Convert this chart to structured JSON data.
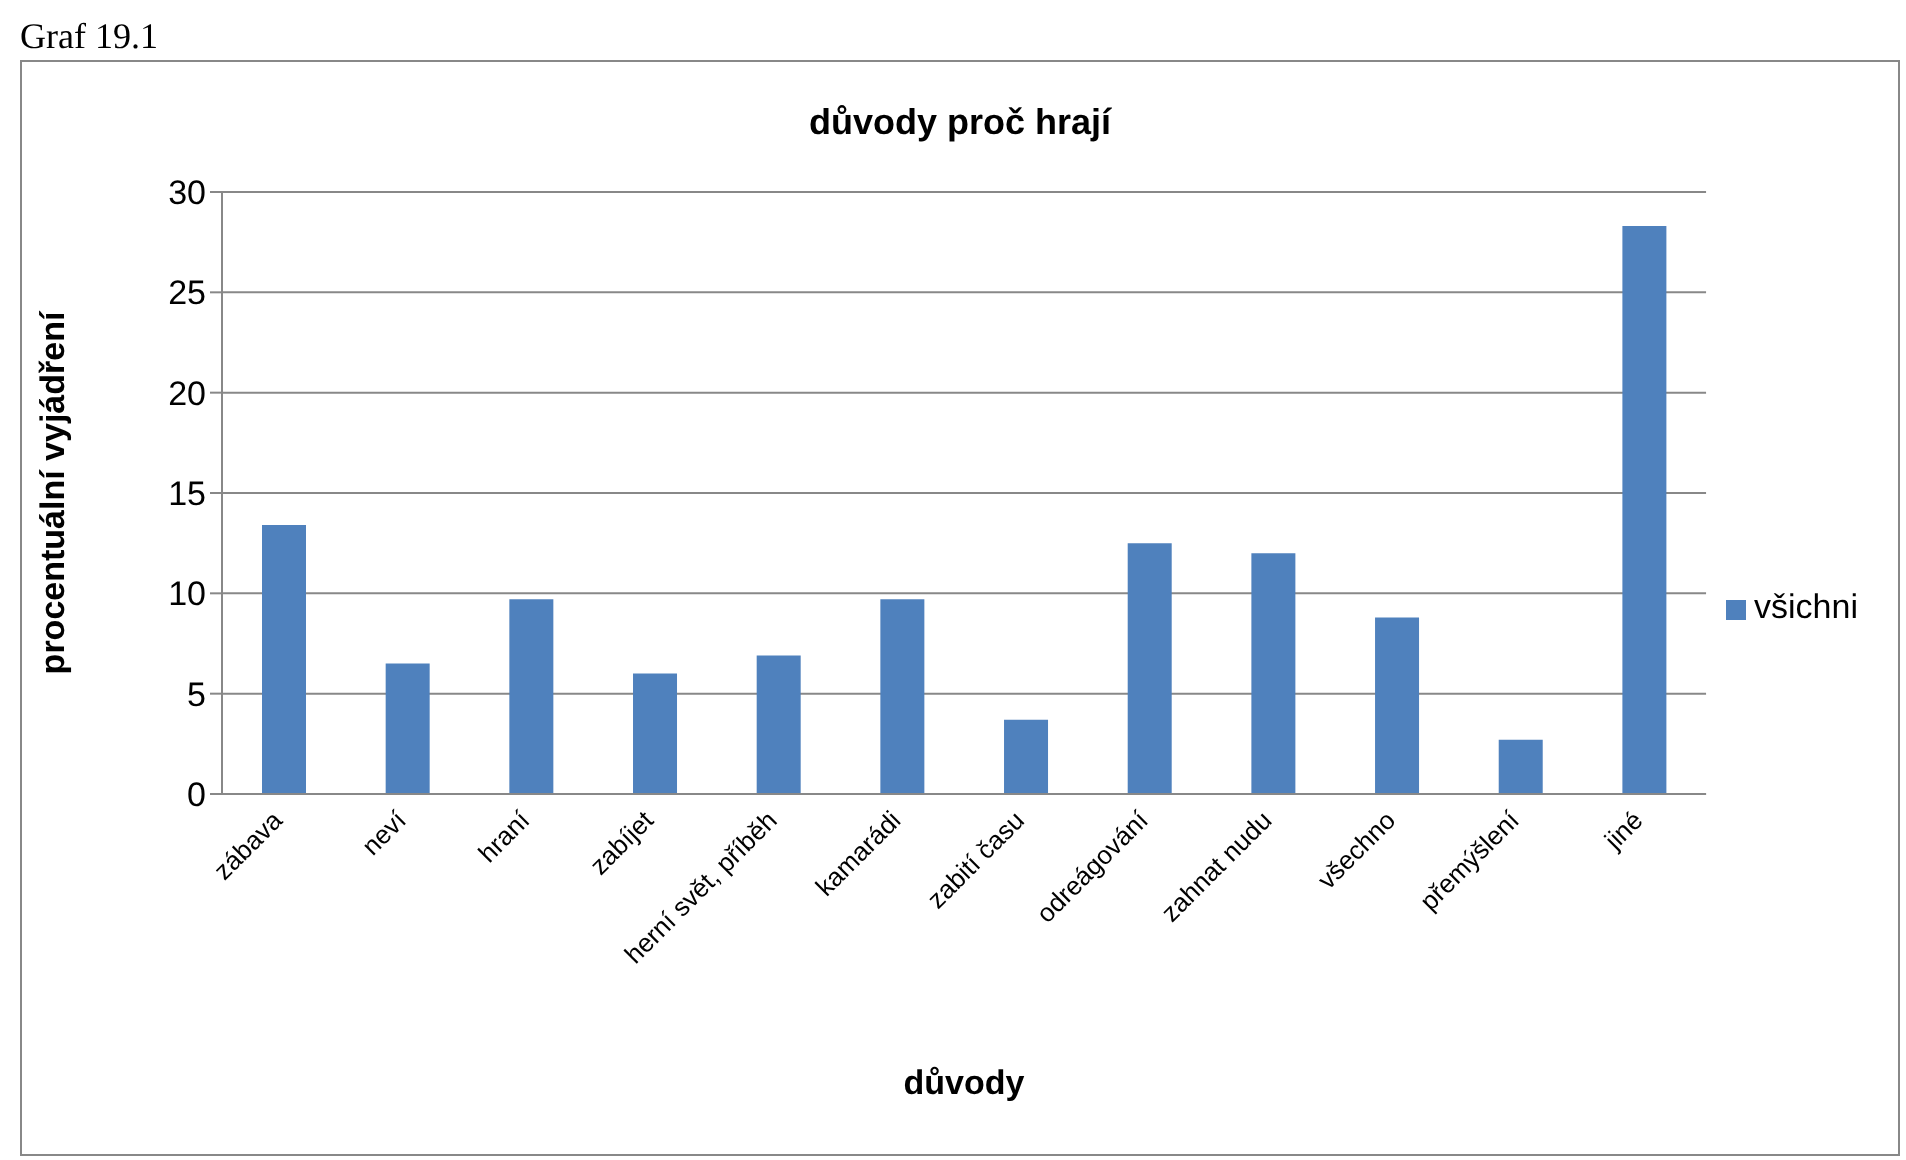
{
  "chart_data": {
    "type": "bar",
    "title": "důvody proč hrají",
    "xlabel": "důvody",
    "ylabel": "procentuální vyjádření",
    "annotations": [
      "Graf 19.1"
    ],
    "categories": [
      "zábava",
      "neví",
      "hraní",
      "zabíjet",
      "herní svět, příběh",
      "kamarádi",
      "zabití času",
      "odreágování",
      "zahnat nudu",
      "všechno",
      "přemýšlení",
      "jiné"
    ],
    "series": [
      {
        "name": "všichni",
        "color": "#4f81bd",
        "values": [
          13.4,
          6.5,
          9.7,
          6.0,
          6.9,
          9.7,
          3.7,
          12.5,
          12.0,
          8.8,
          2.7,
          28.3
        ]
      }
    ],
    "ylim": [
      0,
      30
    ],
    "yticks": [
      0,
      5,
      10,
      15,
      20,
      25,
      30
    ],
    "grid": "y",
    "legend": "right"
  }
}
